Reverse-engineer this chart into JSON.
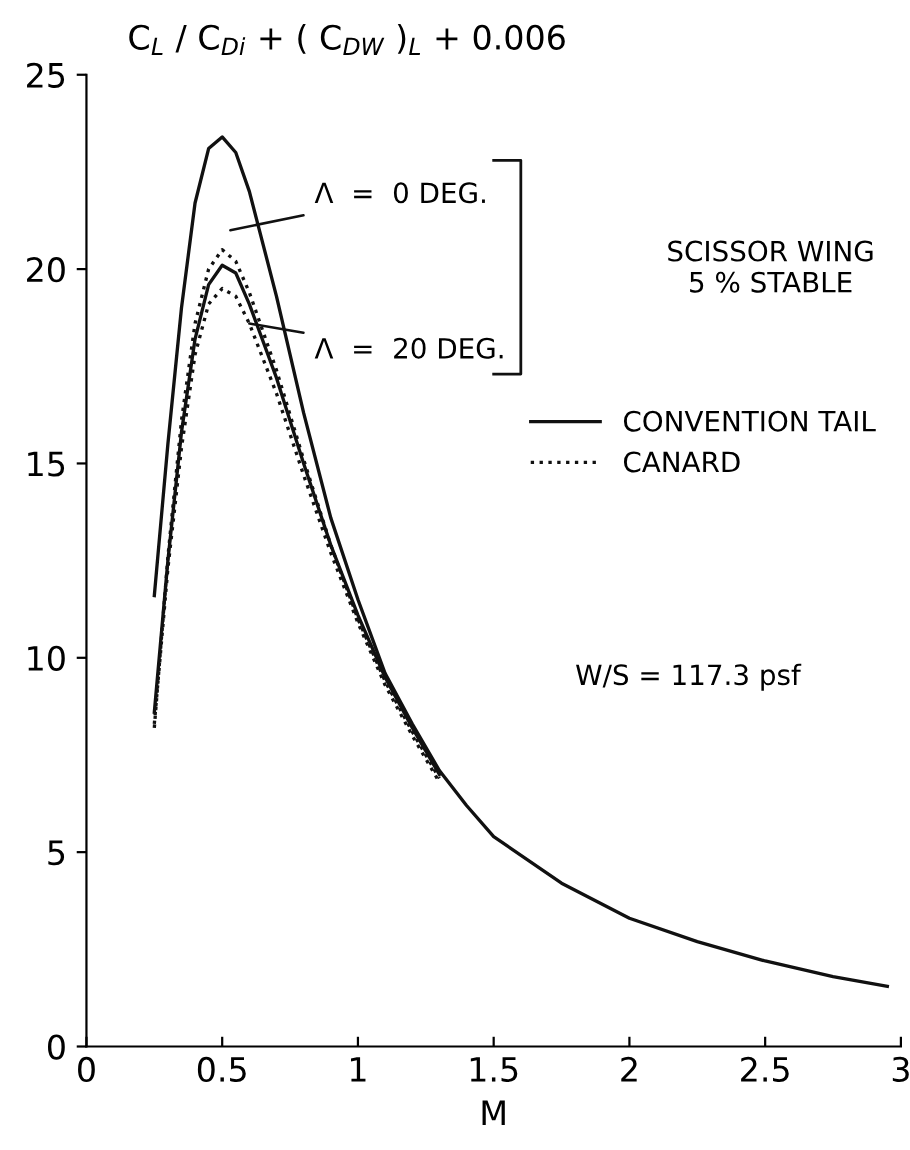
{
  "chart_data": {
    "type": "line",
    "ylabel": "C$_{L}$ / C$_{Di}$ + ( C$_{DW}$ )$_{L}$ + 0.006",
    "xlabel": "M",
    "xlim": [
      0,
      3
    ],
    "xticks": [
      0,
      0.5,
      1,
      1.5,
      2,
      2.5,
      3
    ],
    "ylim": [
      0,
      25
    ],
    "yticks": [
      0,
      5,
      10,
      15,
      20,
      25
    ],
    "grid": false,
    "legend": "right",
    "marker": "none",
    "series": [
      {
        "name": "CONVENTION TAIL",
        "color": "#111111",
        "line_style": "solid",
        "x": [
          0.25,
          0.3,
          0.35,
          0.4,
          0.45,
          0.5,
          0.55,
          0.6,
          0.7,
          0.8,
          0.9,
          1.0,
          1.1,
          1.2,
          1.3,
          1.4,
          1.5,
          1.75,
          2.0,
          2.25,
          2.5,
          2.75,
          2.95
        ],
        "values": [
          11.6,
          15.5,
          19,
          21.7,
          23.1,
          23.4,
          23.0,
          22.0,
          19.3,
          16.3,
          13.6,
          11.5,
          9.6,
          8.3,
          7.1,
          6.2,
          5.4,
          4.2,
          3.3,
          2.7,
          2.2,
          1.8,
          1.55
        ]
      },
      {
        "color": "#111111",
        "line_style": "solid",
        "x": [
          0.25,
          0.3,
          0.35,
          0.4,
          0.45,
          0.5,
          0.55,
          0.6,
          0.7,
          0.8,
          0.9,
          1.0,
          1.1,
          1.2,
          1.3
        ],
        "values": [
          8.6,
          12.5,
          15.8,
          18.2,
          19.6,
          20.1,
          19.9,
          19.1,
          17.2,
          15.0,
          12.9,
          11.1,
          9.5,
          8.2,
          7.0
        ]
      },
      {
        "name": "CANARD",
        "color": "#111111",
        "line_style": "dotted",
        "x": [
          0.25,
          0.3,
          0.35,
          0.4,
          0.45,
          0.5,
          0.55,
          0.6,
          0.7,
          0.8,
          0.9,
          1.0,
          1.1,
          1.2,
          1.3
        ],
        "values": [
          8.2,
          12.6,
          16.1,
          18.6,
          20.0,
          20.5,
          20.2,
          19.4,
          17.4,
          15.1,
          12.9,
          11.0,
          9.4,
          8.1,
          6.9
        ]
      },
      {
        "color": "#111111",
        "line_style": "dotted",
        "x": [
          0.25,
          0.3,
          0.35,
          0.4,
          0.45,
          0.5,
          0.55,
          0.6,
          0.7,
          0.8,
          0.9,
          1.0,
          1.1,
          1.2,
          1.3
        ],
        "values": [
          8.3,
          12.3,
          15.4,
          17.8,
          19.1,
          19.5,
          19.3,
          18.6,
          16.8,
          14.7,
          12.7,
          10.9,
          9.3,
          8.0,
          6.8
        ]
      }
    ],
    "annotations": [
      "Λ  =  0 DEG.",
      {
        "text": "Λ  =  20 DEG.",
        "x": 0.6,
        "y": 18.6
      },
      "SCISSOR WING\n5 % STABLE",
      "W/S = 117.3 psf"
    ]
  }
}
